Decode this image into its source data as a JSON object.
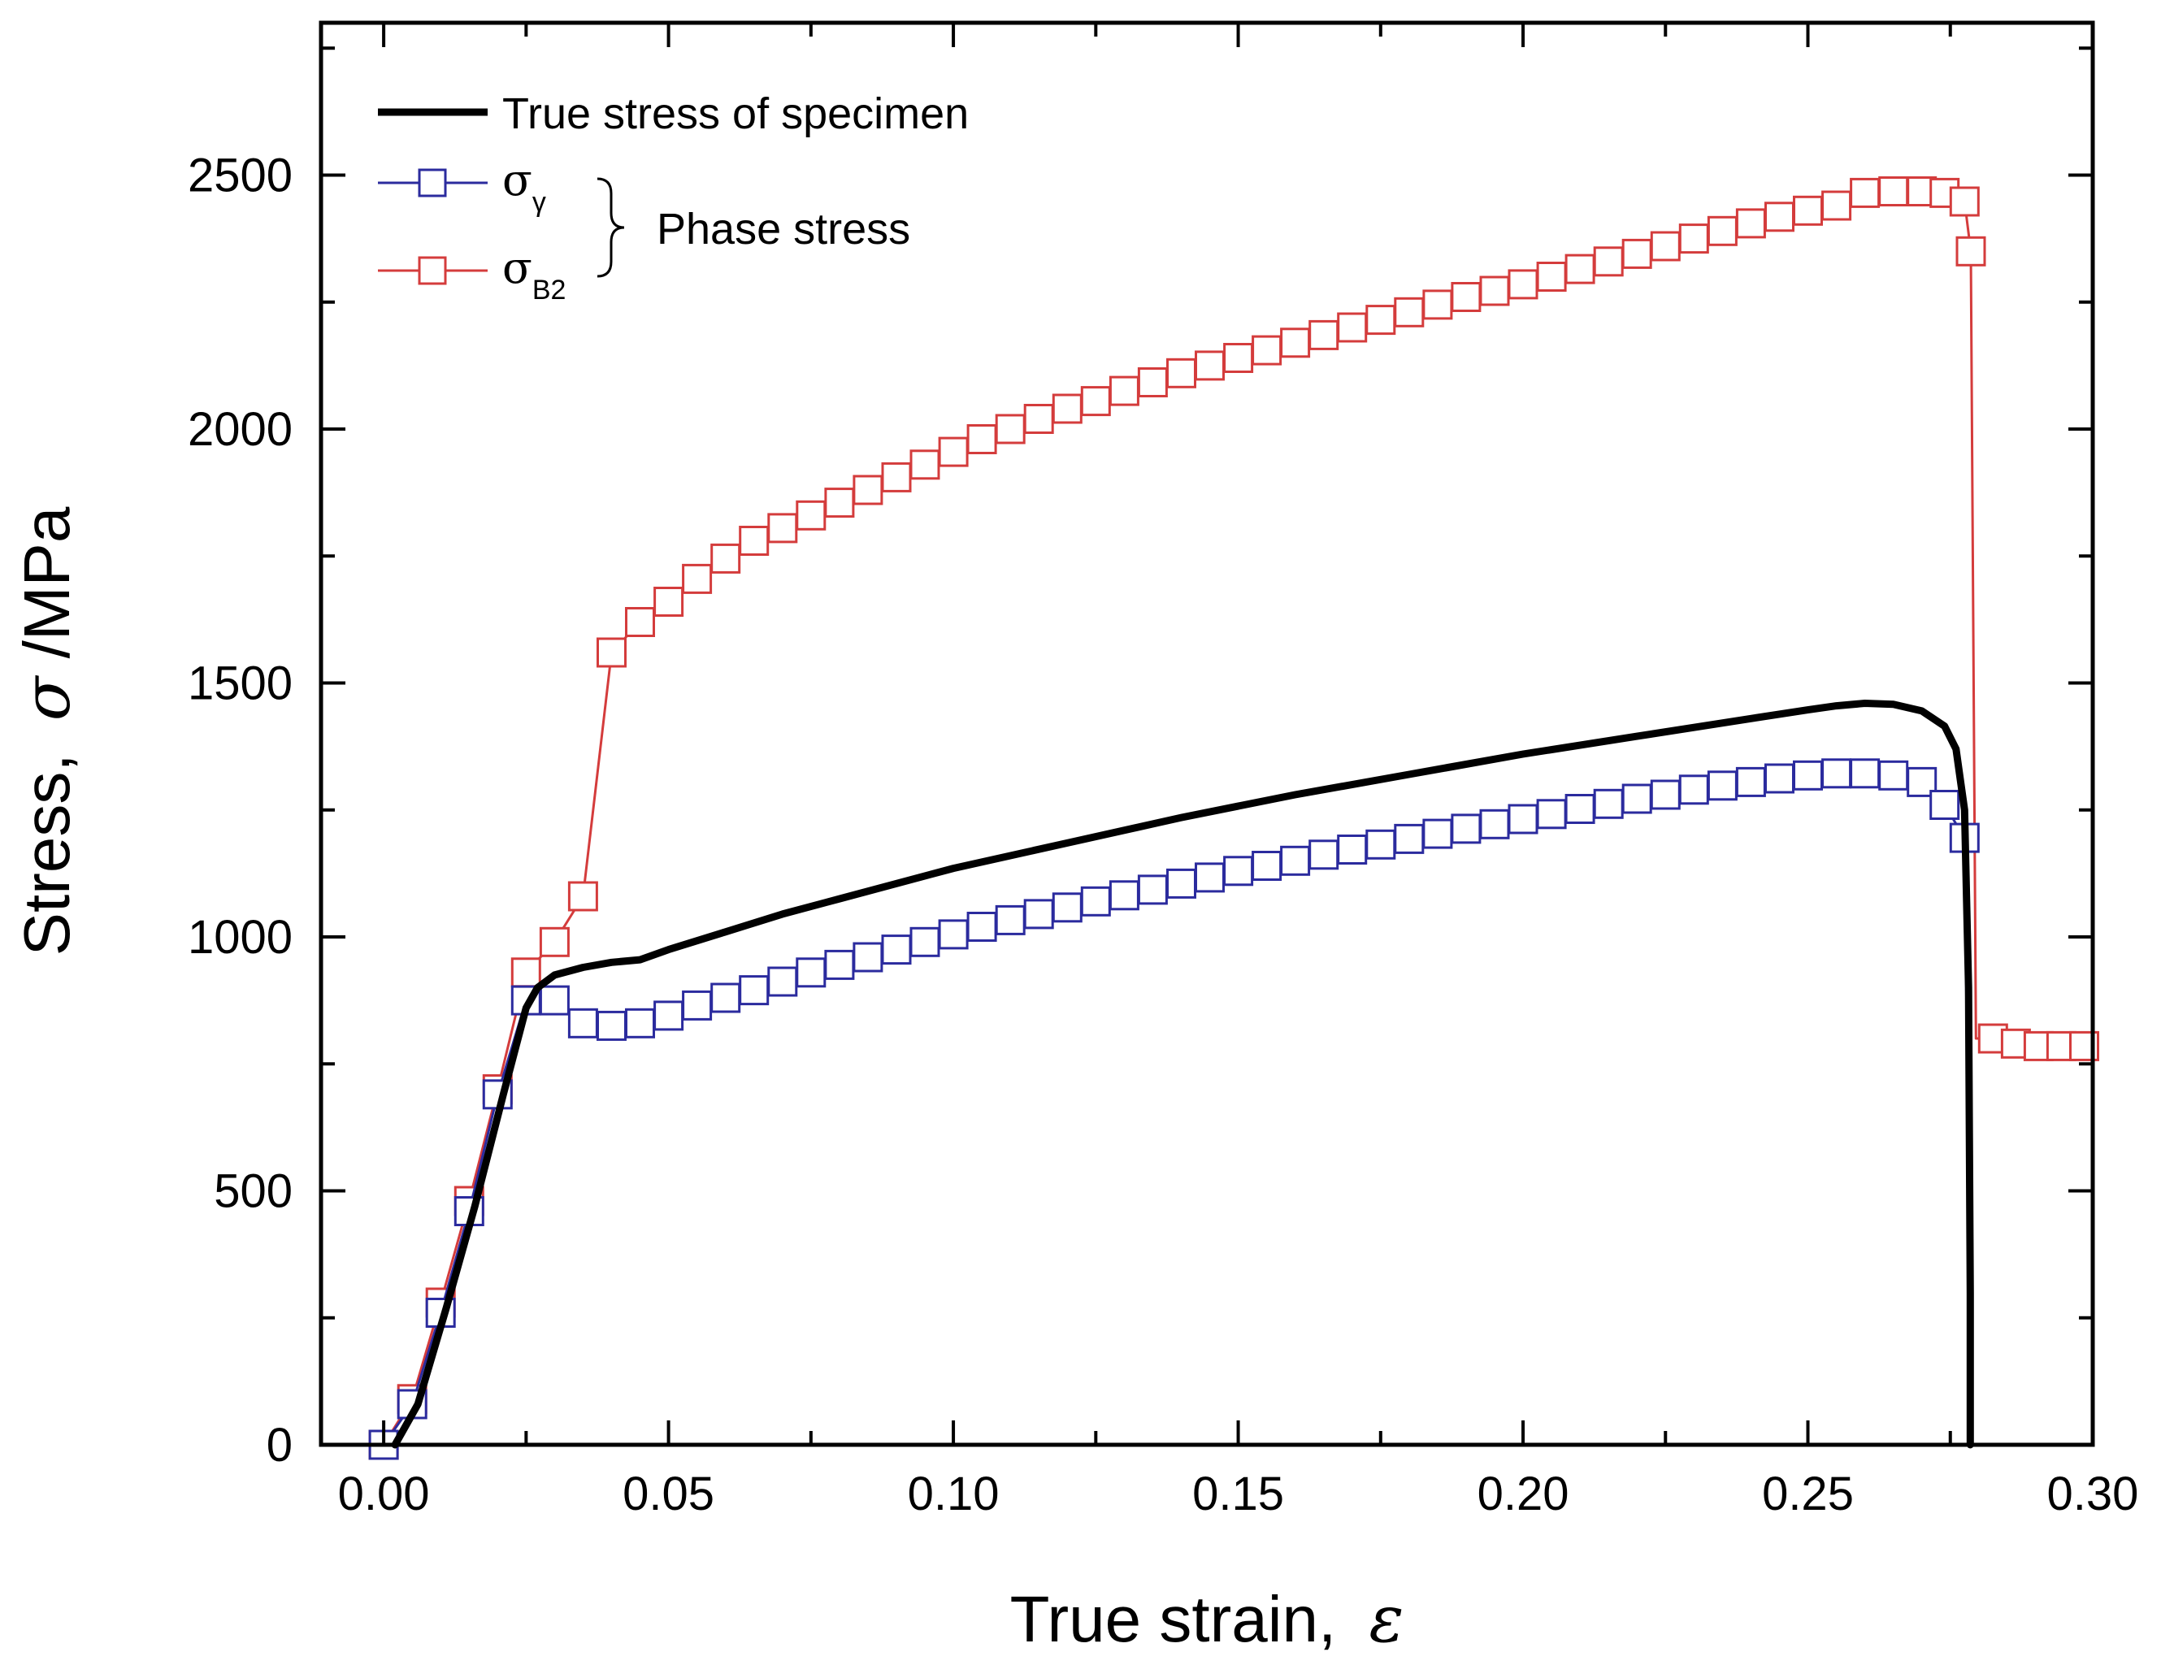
{
  "chart_data": {
    "type": "line",
    "title": "",
    "xlabel": "True strain,",
    "xlabel_symbol": "ε",
    "ylabel": "Stress,",
    "ylabel_symbol": "σ",
    "ylabel_unit": "/MPa",
    "xlim": [
      -0.011,
      0.3
    ],
    "ylim": [
      0,
      2800
    ],
    "xticks": [
      0.0,
      0.05,
      0.1,
      0.15,
      0.2,
      0.25,
      0.3
    ],
    "xtick_labels": [
      "0.00",
      "0.05",
      "0.10",
      "0.15",
      "0.20",
      "0.25",
      "0.30"
    ],
    "yticks": [
      0,
      500,
      1000,
      1500,
      2000,
      2500
    ],
    "ytick_labels": [
      "0",
      "500",
      "1000",
      "1500",
      "2000",
      "2500"
    ],
    "grid": false,
    "legend": {
      "position": "top-left",
      "entries": [
        {
          "label": "True stress of specimen",
          "series": "specimen"
        },
        {
          "label": "σ",
          "sub": "γ",
          "series": "gamma"
        },
        {
          "label": "σ",
          "sub": "B2",
          "series": "b2"
        }
      ],
      "group_label": "Phase stress"
    },
    "series": [
      {
        "name": "True stress of specimen",
        "color": "#000000",
        "marker": "none",
        "x": [
          0.002,
          0.006,
          0.011,
          0.016,
          0.021,
          0.025,
          0.027,
          0.03,
          0.035,
          0.04,
          0.045,
          0.05,
          0.06,
          0.07,
          0.08,
          0.1,
          0.12,
          0.14,
          0.16,
          0.18,
          0.2,
          0.22,
          0.24,
          0.25,
          0.255,
          0.26,
          0.265,
          0.27,
          0.274,
          0.276,
          0.2775,
          0.2782,
          0.2785,
          0.2785
        ],
        "y": [
          0,
          80,
          270,
          470,
          690,
          860,
          900,
          925,
          940,
          950,
          955,
          975,
          1010,
          1045,
          1075,
          1135,
          1185,
          1235,
          1280,
          1320,
          1360,
          1395,
          1430,
          1447,
          1455,
          1460,
          1458,
          1445,
          1415,
          1370,
          1250,
          900,
          300,
          0
        ]
      },
      {
        "name": "σγ",
        "color": "#2b2b9e",
        "marker": "square",
        "x": [
          0.0,
          0.005,
          0.01,
          0.015,
          0.02,
          0.025,
          0.03,
          0.035,
          0.04,
          0.045,
          0.05,
          0.055,
          0.06,
          0.065,
          0.07,
          0.075,
          0.08,
          0.085,
          0.09,
          0.095,
          0.1,
          0.105,
          0.11,
          0.115,
          0.12,
          0.125,
          0.13,
          0.135,
          0.14,
          0.145,
          0.15,
          0.155,
          0.16,
          0.165,
          0.17,
          0.175,
          0.18,
          0.185,
          0.19,
          0.195,
          0.2,
          0.205,
          0.21,
          0.215,
          0.22,
          0.225,
          0.23,
          0.235,
          0.24,
          0.245,
          0.25,
          0.255,
          0.26,
          0.265,
          0.27,
          0.274,
          0.2775,
          0.2782,
          0.2786
        ],
        "y": [
          0,
          80,
          260,
          460,
          690,
          875,
          875,
          830,
          825,
          830,
          845,
          865,
          880,
          895,
          912,
          930,
          945,
          960,
          975,
          990,
          1005,
          1020,
          1033,
          1045,
          1058,
          1070,
          1082,
          1093,
          1105,
          1117,
          1130,
          1140,
          1150,
          1162,
          1172,
          1182,
          1193,
          1203,
          1213,
          1222,
          1232,
          1242,
          1252,
          1262,
          1272,
          1280,
          1290,
          1298,
          1305,
          1312,
          1318,
          1322,
          1322,
          1318,
          1305,
          1260,
          1195,
          500,
          0
        ],
        "markers_at": [
          0.0,
          0.005,
          0.01,
          0.015,
          0.02,
          0.025,
          0.03,
          0.035,
          0.04,
          0.045,
          0.05,
          0.055,
          0.06,
          0.065,
          0.07,
          0.075,
          0.08,
          0.085,
          0.09,
          0.095,
          0.1,
          0.105,
          0.11,
          0.115,
          0.12,
          0.125,
          0.13,
          0.135,
          0.14,
          0.145,
          0.15,
          0.155,
          0.16,
          0.165,
          0.17,
          0.175,
          0.18,
          0.185,
          0.19,
          0.195,
          0.2,
          0.205,
          0.21,
          0.215,
          0.22,
          0.225,
          0.23,
          0.235,
          0.24,
          0.245,
          0.25,
          0.255,
          0.26,
          0.265,
          0.27,
          0.274,
          0.2775
        ]
      },
      {
        "name": "σB2",
        "color": "#d43c3c",
        "marker": "square",
        "x": [
          0.0,
          0.005,
          0.01,
          0.015,
          0.02,
          0.025,
          0.03,
          0.035,
          0.04,
          0.045,
          0.05,
          0.055,
          0.06,
          0.065,
          0.07,
          0.075,
          0.08,
          0.085,
          0.09,
          0.095,
          0.1,
          0.105,
          0.11,
          0.115,
          0.12,
          0.125,
          0.13,
          0.135,
          0.14,
          0.145,
          0.15,
          0.155,
          0.16,
          0.165,
          0.17,
          0.175,
          0.18,
          0.185,
          0.19,
          0.195,
          0.2,
          0.205,
          0.21,
          0.215,
          0.22,
          0.225,
          0.23,
          0.235,
          0.24,
          0.245,
          0.25,
          0.255,
          0.26,
          0.265,
          0.27,
          0.274,
          0.2775,
          0.2786,
          0.2795,
          0.2825,
          0.2865,
          0.2905,
          0.2945,
          0.2985
        ],
        "y": [
          0,
          90,
          280,
          480,
          700,
          930,
          990,
          1080,
          1560,
          1620,
          1660,
          1705,
          1745,
          1780,
          1805,
          1830,
          1855,
          1880,
          1905,
          1930,
          1955,
          1980,
          2000,
          2020,
          2040,
          2055,
          2075,
          2092,
          2110,
          2125,
          2140,
          2155,
          2170,
          2185,
          2200,
          2215,
          2230,
          2245,
          2260,
          2272,
          2285,
          2300,
          2315,
          2330,
          2345,
          2360,
          2375,
          2390,
          2405,
          2418,
          2430,
          2440,
          2465,
          2468,
          2468,
          2465,
          2448,
          2350,
          800,
          800,
          790,
          785,
          785,
          785
        ],
        "markers_at": [
          0.0,
          0.005,
          0.01,
          0.015,
          0.02,
          0.025,
          0.03,
          0.035,
          0.04,
          0.045,
          0.05,
          0.055,
          0.06,
          0.065,
          0.07,
          0.075,
          0.08,
          0.085,
          0.09,
          0.095,
          0.1,
          0.105,
          0.11,
          0.115,
          0.12,
          0.125,
          0.13,
          0.135,
          0.14,
          0.145,
          0.15,
          0.155,
          0.16,
          0.165,
          0.17,
          0.175,
          0.18,
          0.185,
          0.19,
          0.195,
          0.2,
          0.205,
          0.21,
          0.215,
          0.22,
          0.225,
          0.23,
          0.235,
          0.24,
          0.245,
          0.25,
          0.255,
          0.26,
          0.265,
          0.27,
          0.274,
          0.2775,
          0.2786,
          0.2825,
          0.2865,
          0.2905,
          0.2945,
          0.2985
        ]
      }
    ]
  }
}
